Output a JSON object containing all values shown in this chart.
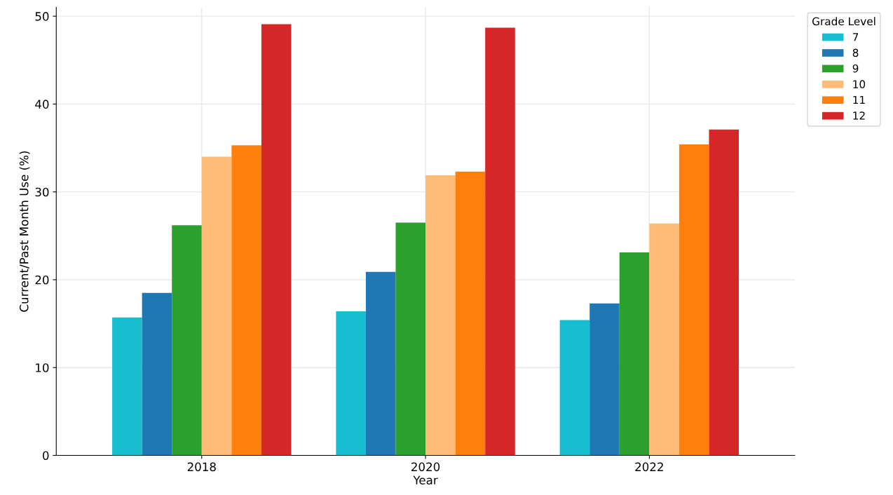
{
  "chart_data": {
    "type": "bar",
    "xlabel": "Year",
    "ylabel": "Current/Past Month Use (%)",
    "legend_title": "Grade Level",
    "categories": [
      "2018",
      "2020",
      "2022"
    ],
    "series": [
      {
        "name": "7",
        "color": "#17becf",
        "values": [
          15.7,
          16.4,
          15.4
        ]
      },
      {
        "name": "8",
        "color": "#1f77b4",
        "values": [
          18.5,
          20.9,
          17.3
        ]
      },
      {
        "name": "9",
        "color": "#2ca02c",
        "values": [
          26.2,
          26.5,
          23.1
        ]
      },
      {
        "name": "10",
        "color": "#ffbb78",
        "values": [
          34.0,
          31.9,
          26.4
        ]
      },
      {
        "name": "11",
        "color": "#ff7f0e",
        "values": [
          35.3,
          32.3,
          35.4
        ]
      },
      {
        "name": "12",
        "color": "#d62728",
        "values": [
          49.1,
          48.7,
          37.1
        ]
      }
    ],
    "ylim": [
      0,
      51
    ],
    "yticks": [
      0,
      10,
      20,
      30,
      40,
      50
    ],
    "grid": true,
    "legend": "top right"
  }
}
